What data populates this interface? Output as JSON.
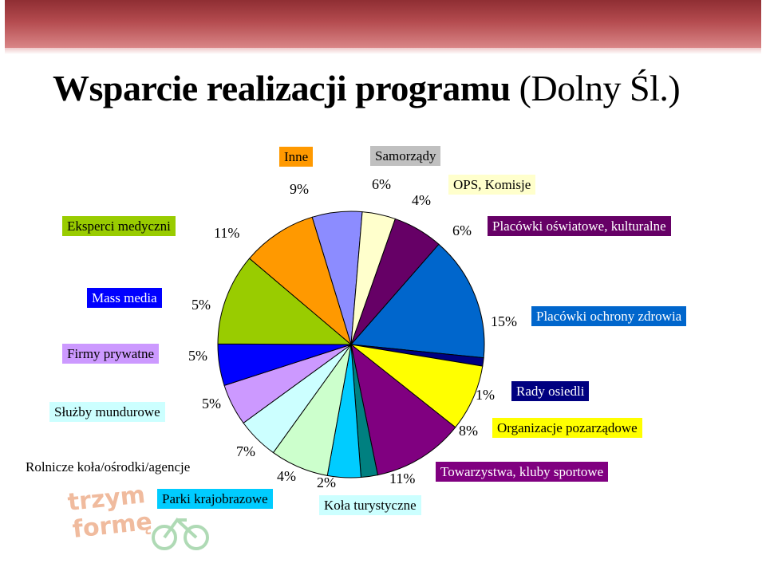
{
  "banner": {
    "color": "#a33b40"
  },
  "slide": {
    "title_bold": "Wsparcie realizacji programu",
    "title_normal": "(Dolny Śl.)"
  },
  "logo": {
    "text_line1": "trzym",
    "text_line2": "formę",
    "color": "#e06a2a"
  },
  "chart_data": {
    "type": "pie",
    "title": "",
    "slices": [
      {
        "label": "Samorządy",
        "percent_label": "6%",
        "value": 6,
        "color": "#8c8cff",
        "label_bg": "#c0c0c0",
        "label_fg": "#000000"
      },
      {
        "label": "OPS, Komisje",
        "percent_label": "4%",
        "value": 4,
        "color": "#ffffcc",
        "label_bg": "#ffffcc",
        "label_fg": "#000000"
      },
      {
        "label": "Placówki oświatowe, kulturalne",
        "percent_label": "6%",
        "value": 6,
        "color": "#660066",
        "label_bg": "#660066",
        "label_fg": "#ffffff"
      },
      {
        "label": "Placówki ochrony zdrowia",
        "percent_label": "15%",
        "value": 15,
        "color": "#0066cc",
        "label_bg": "#0066cc",
        "label_fg": "#ffffff"
      },
      {
        "label": "Rady osiedli",
        "percent_label": "1%",
        "value": 1,
        "color": "#000080",
        "label_bg": "#000080",
        "label_fg": "#ffffff"
      },
      {
        "label": "Organizacje pozarządowe",
        "percent_label": "8%",
        "value": 8,
        "color": "#ffff00",
        "label_bg": "#ffff00",
        "label_fg": "#000000"
      },
      {
        "label": "Towarzystwa, kluby sportowe",
        "percent_label": "11%",
        "value": 11,
        "color": "#800080",
        "label_bg": "#800080",
        "label_fg": "#ffffff"
      },
      {
        "label": "Koła turystyczne",
        "percent_label": "2%",
        "value": 2,
        "color": "#008080",
        "label_bg": "#ccffff",
        "label_fg": "#000000"
      },
      {
        "label": "Parki krajobrazowe",
        "percent_label": "4%",
        "value": 4,
        "color": "#00ccff",
        "label_bg": "#00ccff",
        "label_fg": "#000000"
      },
      {
        "label": "Rolnicze koła/ośrodki/agencje",
        "percent_label": "7%",
        "value": 7,
        "color": "#ccffcc",
        "label_bg": "#ffffff",
        "label_fg": "#000000"
      },
      {
        "label": "Służby mundurowe",
        "percent_label": "5%",
        "value": 5,
        "color": "#ccffff",
        "label_bg": "#ccffff",
        "label_fg": "#000000"
      },
      {
        "label": "Firmy prywatne",
        "percent_label": "5%",
        "value": 5,
        "color": "#cc99ff",
        "label_bg": "#cc99ff",
        "label_fg": "#000000"
      },
      {
        "label": "Mass media",
        "percent_label": "5%",
        "value": 5,
        "color": "#0000ff",
        "label_bg": "#0000ff",
        "label_fg": "#ffffff"
      },
      {
        "label": "Eksperci medyczni",
        "percent_label": "11%",
        "value": 11,
        "color": "#99cc00",
        "label_bg": "#99cc00",
        "label_fg": "#000000"
      },
      {
        "label": "Inne",
        "percent_label": "9%",
        "value": 9,
        "color": "#ff9900",
        "label_bg": "#ff9900",
        "label_fg": "#000000"
      }
    ]
  }
}
